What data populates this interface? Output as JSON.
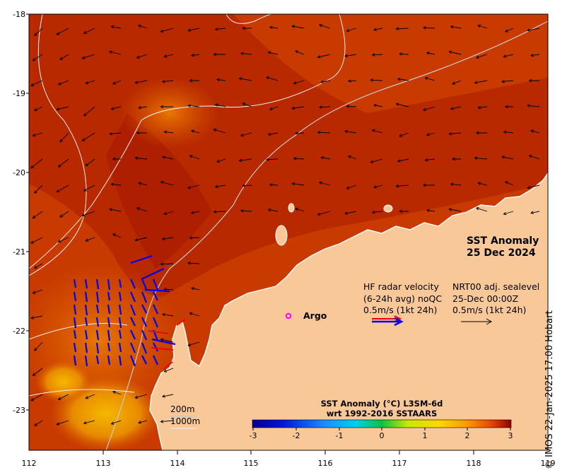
{
  "map": {
    "title_line1": "SST Anomaly",
    "title_line2": "25 Dec 2024",
    "lon_ticks": [
      "112",
      "113",
      "114",
      "115",
      "116",
      "117",
      "118",
      "119"
    ],
    "lat_ticks": [
      "-18",
      "-19",
      "-20",
      "-21",
      "-22",
      "-23"
    ],
    "hf_legend": {
      "line1": "HF radar velocity",
      "line2": "(6-24h avg) noQC",
      "line3": "0.5m/s (1kt 24h)"
    },
    "nrt_legend": {
      "line1": "NRT00 adj. sealevel",
      "line2": "25-Dec 00:00Z",
      "line3": "0.5m/s (1kt 24h)"
    },
    "argo_label": "Argo",
    "depth_200": "200m",
    "depth_1000": "1000m",
    "colorbar": {
      "title_line1": "SST Anomaly (°C) L3SM-6d",
      "title_line2": "wrt 1992-2016 SSTAARS",
      "ticks": [
        "-3",
        "-2",
        "-1",
        "0",
        "1",
        "2",
        "3"
      ]
    },
    "credit": "© IMOS 22-Jan-2025 17:00 Hobart",
    "colors": {
      "land": "#f9c899",
      "sea_warm": "#c83a00",
      "sea_hot": "#a71800",
      "hf_arrow": "#0000ee",
      "hf_red": "#ee0000",
      "argo": "#ff00ff"
    }
  }
}
